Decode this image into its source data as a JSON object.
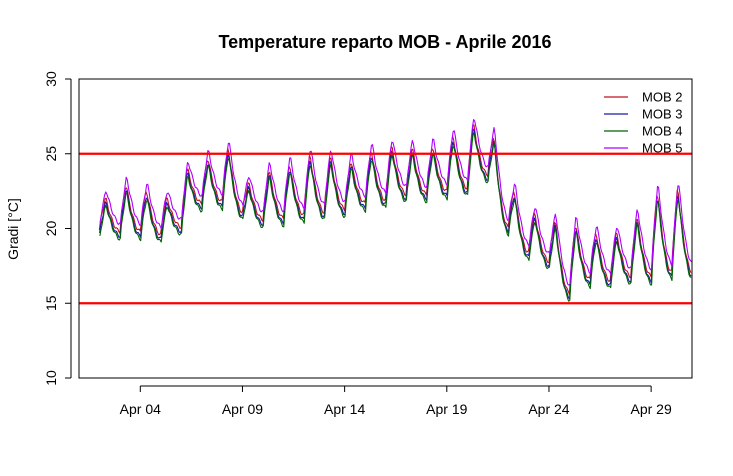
{
  "chart_data": {
    "type": "line",
    "title": "Temperature reparto MOB - Aprile 2016",
    "xlabel": "",
    "ylabel": "Gradi [°C]",
    "xlim": [
      "2016-04-01",
      "2016-05-01"
    ],
    "ylim": [
      10,
      30
    ],
    "yticks": [
      10,
      15,
      20,
      25,
      30
    ],
    "xticks": [
      {
        "date": "2016-04-04",
        "label": "Apr 04"
      },
      {
        "date": "2016-04-09",
        "label": "Apr 09"
      },
      {
        "date": "2016-04-14",
        "label": "Apr 14"
      },
      {
        "date": "2016-04-19",
        "label": "Apr 19"
      },
      {
        "date": "2016-04-24",
        "label": "Apr 24"
      },
      {
        "date": "2016-04-29",
        "label": "Apr 29"
      }
    ],
    "grid": false,
    "legend_position": "top-right",
    "reference_lines": [
      {
        "y": 25,
        "color": "#ff0000"
      },
      {
        "y": 15,
        "color": "#ff0000"
      }
    ],
    "dates": [
      "2016-04-02",
      "2016-04-03",
      "2016-04-04",
      "2016-04-05",
      "2016-04-06",
      "2016-04-07",
      "2016-04-08",
      "2016-04-09",
      "2016-04-10",
      "2016-04-11",
      "2016-04-12",
      "2016-04-13",
      "2016-04-14",
      "2016-04-15",
      "2016-04-16",
      "2016-04-17",
      "2016-04-18",
      "2016-04-19",
      "2016-04-20",
      "2016-04-21",
      "2016-04-22",
      "2016-04-23",
      "2016-04-24",
      "2016-04-25",
      "2016-04-26",
      "2016-04-27",
      "2016-04-28",
      "2016-04-29",
      "2016-04-30"
    ],
    "daily_min": [
      19.8,
      19.7,
      19.7,
      19.5,
      20.0,
      21.6,
      21.7,
      21.0,
      20.5,
      20.6,
      20.8,
      21.0,
      21.2,
      21.6,
      21.8,
      22.2,
      22.2,
      22.4,
      22.6,
      23.5,
      20.0,
      18.3,
      17.7,
      15.6,
      16.5,
      16.4,
      16.7,
      16.7,
      17.0
    ],
    "daily_max": [
      22.0,
      22.9,
      22.5,
      22.0,
      24.0,
      24.7,
      25.4,
      23.0,
      23.9,
      24.3,
      24.9,
      24.8,
      24.5,
      25.2,
      25.5,
      25.4,
      25.5,
      26.2,
      27.0,
      26.2,
      22.5,
      21.0,
      20.5,
      20.3,
      19.7,
      19.7,
      20.8,
      22.5,
      22.7
    ],
    "series": [
      {
        "name": "MOB 2",
        "color": "#c1121f",
        "offset": 0.1,
        "phase": 0.0
      },
      {
        "name": "MOB 3",
        "color": "#1a1aa6",
        "offset": -0.2,
        "phase": 0.35
      },
      {
        "name": "MOB 4",
        "color": "#006400",
        "offset": -0.4,
        "phase": 0.7
      },
      {
        "name": "MOB 5",
        "color": "#b000ff",
        "offset": 0.6,
        "phase": 1.05
      }
    ]
  }
}
